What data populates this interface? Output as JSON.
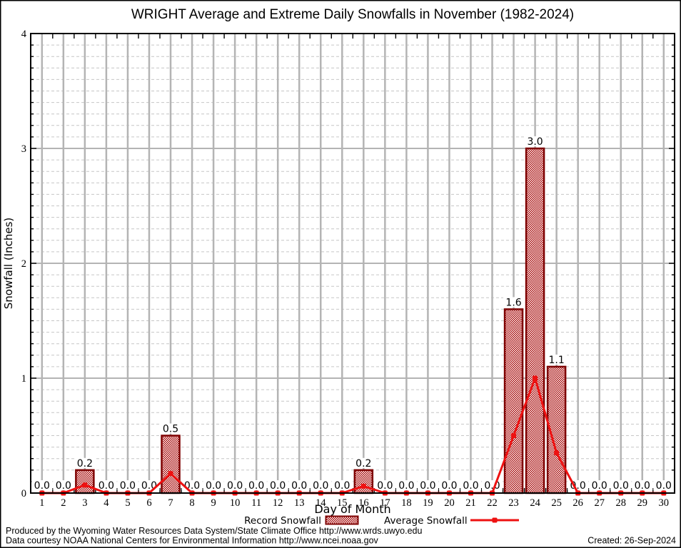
{
  "title": "WRIGHT Average and Extreme Daily Snowfalls in November (1982-2024)",
  "y_axis": {
    "label": "Snowfall (Inches)"
  },
  "x_axis": {
    "label": "Day of Month"
  },
  "legend": {
    "record_label": "Record Snowfall",
    "average_label": "Average Snowfall"
  },
  "footer": {
    "line1": "Produced by the Wyoming Water Resources Data System/State Climate Office http://www.wrds.uwyo.edu",
    "line2": "Data courtesy NOAA National Centers for Environmental Information http://www.ncei.noaa.gov",
    "created": "Created: 26-Sep-2024"
  },
  "colors": {
    "bar_fill": "#a40000",
    "bar_border": "#7e0000",
    "line": "#ee1111",
    "grid_vertical": "#b4b4b4",
    "grid_major": "#b4b4b4",
    "grid_minor": "#c6c6c6",
    "axis": "#000000",
    "label_text": "#000000"
  },
  "chart_data": {
    "type": "bar",
    "title": "WRIGHT Average and Extreme Daily Snowfalls in November (1982-2024)",
    "xlabel": "Day of Month",
    "ylabel": "Snowfall (Inches)",
    "ylim": [
      0,
      4
    ],
    "y_major_ticks": [
      0,
      1,
      2,
      3,
      4
    ],
    "y_minor_step": 0.1,
    "grid": true,
    "legend_position": "bottom",
    "categories": [
      1,
      2,
      3,
      4,
      5,
      6,
      7,
      8,
      9,
      10,
      11,
      12,
      13,
      14,
      15,
      16,
      17,
      18,
      19,
      20,
      21,
      22,
      23,
      24,
      25,
      26,
      27,
      28,
      29,
      30
    ],
    "series": [
      {
        "name": "Record Snowfall",
        "type": "bar",
        "values": [
          0.0,
          0.0,
          0.2,
          0.0,
          0.0,
          0.0,
          0.5,
          0.0,
          0.0,
          0.0,
          0.0,
          0.0,
          0.0,
          0.0,
          0.0,
          0.2,
          0.0,
          0.0,
          0.0,
          0.0,
          0.0,
          0.0,
          1.6,
          3.0,
          1.1,
          0.0,
          0.0,
          0.0,
          0.0,
          0.0
        ],
        "value_labels_shown": true
      },
      {
        "name": "Average Snowfall",
        "type": "line",
        "values": [
          0,
          0,
          0.07,
          0,
          0,
          0,
          0.17,
          0,
          0,
          0,
          0,
          0,
          0,
          0,
          0,
          0.06,
          0,
          0,
          0,
          0,
          0,
          0,
          0.5,
          1.0,
          0.35,
          0,
          0,
          0,
          0,
          0
        ]
      }
    ]
  }
}
